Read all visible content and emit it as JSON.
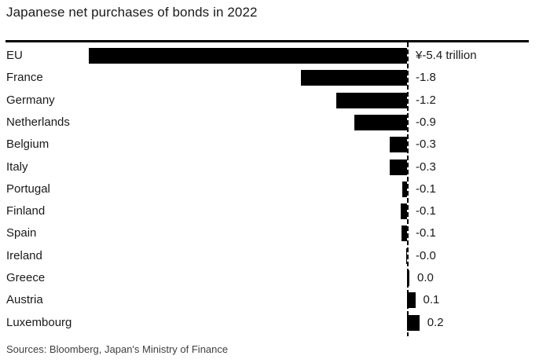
{
  "page": {
    "title": "Japanese net purchases of bonds in 2022",
    "source": "Sources: Bloomberg, Japan's Ministry of Finance"
  },
  "colors": {
    "background": "#ffffff",
    "bar": "#000000",
    "rule": "#000000",
    "text": "#1a1a1a",
    "muted": "#3f3f3f"
  },
  "chart_data": {
    "type": "bar",
    "orientation": "horizontal",
    "title": "Japanese net purchases of bonds in 2022",
    "unit": "trillion yen",
    "categories": [
      "EU",
      "France",
      "Germany",
      "Netherlands",
      "Belgium",
      "Italy",
      "Portugal",
      "Finland",
      "Spain",
      "Ireland",
      "Greece",
      "Austria",
      "Luxembourg"
    ],
    "values": [
      -5.4,
      -1.8,
      -1.2,
      -0.9,
      -0.3,
      -0.3,
      -0.08,
      -0.11,
      -0.1,
      -0.02,
      0.04,
      0.14,
      0.21
    ],
    "value_labels": [
      "¥-5.4 trillion",
      "-1.8",
      "-1.2",
      "-0.9",
      "-0.3",
      "-0.3",
      "-0.1",
      "-0.1",
      "-0.1",
      "-0.0",
      "0.0",
      "0.1",
      "0.2"
    ],
    "xlim": [
      -5.45,
      0.5
    ],
    "grid": false,
    "zero_line": true,
    "legend": null,
    "value_label_position": "right-of-zero-axis"
  }
}
